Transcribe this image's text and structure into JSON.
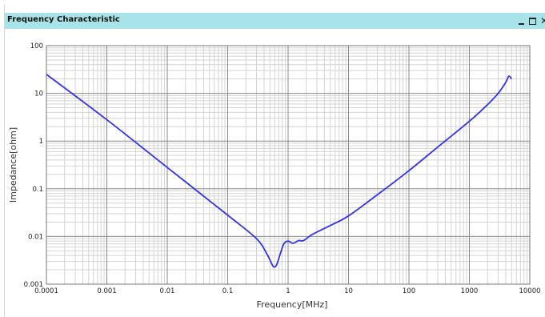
{
  "window": {
    "title": "Frequency Characteristic"
  },
  "chart_data": {
    "type": "line",
    "title": "",
    "xlabel": "Frequency[MHz]",
    "ylabel": "Impedance[ohm]",
    "x_scale": "log",
    "y_scale": "log",
    "xlim": [
      0.0001,
      10000
    ],
    "ylim": [
      0.001,
      100
    ],
    "grid": true,
    "x_tick_labels": [
      "0.0001",
      "0.001",
      "0.01",
      "0.1",
      "1",
      "10",
      "100",
      "1000",
      "10000"
    ],
    "y_tick_labels": [
      "100",
      "10",
      "1",
      "0.1",
      "0.01",
      "0.001"
    ],
    "line_color": "#3333ee",
    "series": [
      {
        "x": [
          0.0001,
          0.001,
          0.01,
          0.1,
          0.3,
          0.45,
          0.55,
          0.6,
          0.65,
          0.75,
          0.85,
          1.0,
          1.2,
          1.5,
          1.8,
          2.5,
          5,
          10,
          30,
          100,
          300,
          1000,
          2000,
          3000,
          4000,
          4500,
          5000
        ],
        "y": [
          25,
          2.8,
          0.28,
          0.028,
          0.009,
          0.0042,
          0.0025,
          0.0023,
          0.0026,
          0.0045,
          0.007,
          0.008,
          0.0072,
          0.0082,
          0.0082,
          0.011,
          0.017,
          0.027,
          0.075,
          0.24,
          0.75,
          2.6,
          5.8,
          10,
          17,
          23,
          20
        ]
      }
    ]
  }
}
